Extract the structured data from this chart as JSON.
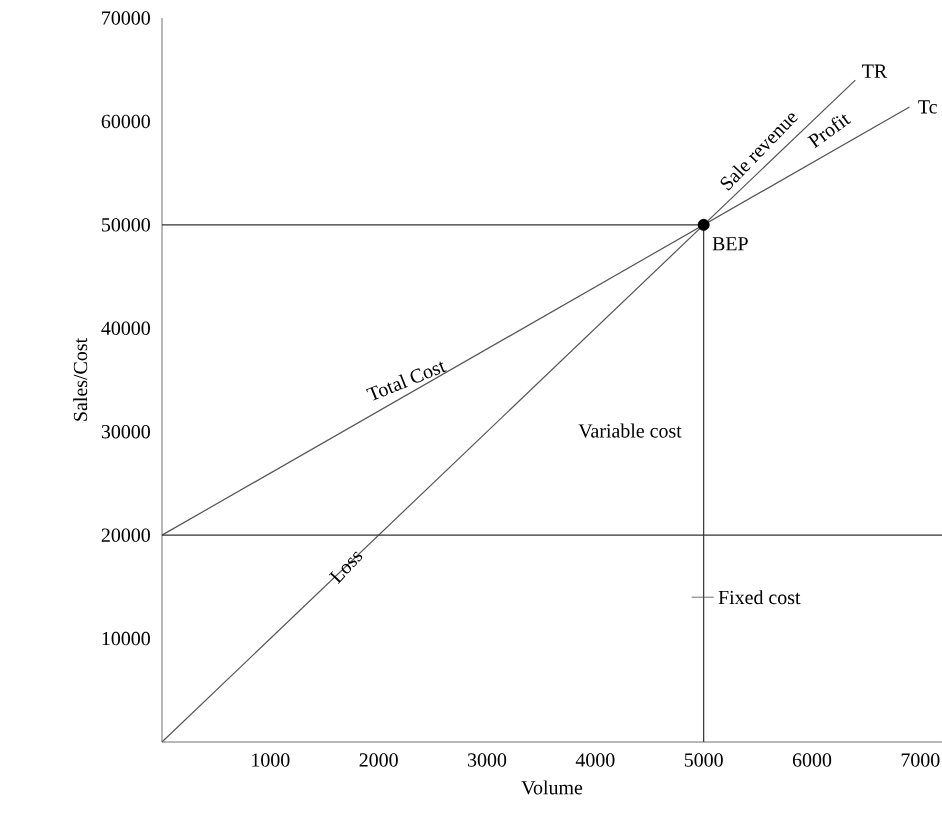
{
  "chart_data": {
    "type": "line",
    "xlabel": "Volume",
    "ylabel": "Sales/Cost",
    "xlim": [
      0,
      7200
    ],
    "ylim": [
      0,
      70000
    ],
    "xticks": [
      1000,
      2000,
      3000,
      4000,
      5000,
      6000,
      7000
    ],
    "yticks": [
      10000,
      20000,
      30000,
      40000,
      50000,
      60000,
      70000
    ],
    "grid": false,
    "series": [
      {
        "color": "#555555",
        "x": [
          0,
          6400
        ],
        "values": [
          0,
          64000
        ]
      },
      {
        "color": "#555555",
        "x": [
          0,
          6900
        ],
        "values": [
          20000,
          61400
        ]
      },
      {
        "color": "#333333",
        "x": [
          0,
          5000,
          5000
        ],
        "values": [
          50000,
          50000,
          0
        ]
      },
      {
        "type": "scatter",
        "color": "#000000",
        "marker": "circle",
        "x": [
          5000
        ],
        "values": [
          50000
        ]
      }
    ],
    "ref_lines": [
      {
        "axis": "y",
        "value": 20000,
        "color": "#333333"
      }
    ],
    "annotations": [
      {
        "text": "TR",
        "x": 6400,
        "y": 64000
      },
      {
        "text": "Tc",
        "x": 6900,
        "y": 61400
      },
      {
        "text": "Sale revenue",
        "x": 5800,
        "y": 58000
      },
      "Profit",
      {
        "text": "BEP",
        "x": 5000,
        "y": 50000
      },
      {
        "text": "Total Cost",
        "x": 2300,
        "y": 33800
      },
      "Variable cost",
      {
        "text": "Loss",
        "x": 1700,
        "y": 17000
      },
      {
        "text": "Fixed cost",
        "x": 5000,
        "y": 14000
      }
    ]
  }
}
